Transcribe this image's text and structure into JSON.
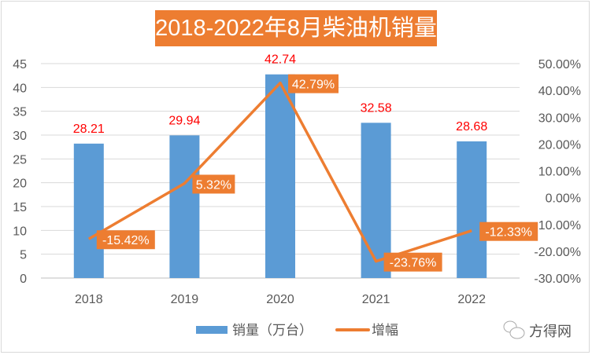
{
  "chart_data": {
    "type": "bar+line",
    "title": "2018-2022年8月柴油机销量",
    "categories": [
      "2018",
      "2019",
      "2020",
      "2021",
      "2022"
    ],
    "series": [
      {
        "name": "销量（万台）",
        "type": "bar",
        "axis": "left",
        "values": [
          28.21,
          29.94,
          42.74,
          32.58,
          28.68
        ],
        "labels": [
          "28.21",
          "29.94",
          "42.74",
          "32.58",
          "28.68"
        ],
        "color": "#5b9bd5",
        "label_color": "#ff0000"
      },
      {
        "name": "增幅",
        "type": "line",
        "axis": "right",
        "values": [
          -15.42,
          5.32,
          42.79,
          -23.76,
          -12.33
        ],
        "labels": [
          "-15.42%",
          "5.32%",
          "42.79%",
          "-23.76%",
          "-12.33%"
        ],
        "color": "#ed7d31"
      }
    ],
    "left_axis": {
      "ylim": [
        0,
        45
      ],
      "ticks": [
        "0",
        "5",
        "10",
        "15",
        "20",
        "25",
        "30",
        "35",
        "40",
        "45"
      ]
    },
    "right_axis": {
      "ylim": [
        -30,
        50
      ],
      "ticks": [
        "-30.00%",
        "-20.00%",
        "-10.00%",
        "0.00%",
        "10.00%",
        "20.00%",
        "30.00%",
        "40.00%",
        "50.00%"
      ]
    },
    "grid": true,
    "legend": "bottom"
  },
  "watermark": "方得网"
}
